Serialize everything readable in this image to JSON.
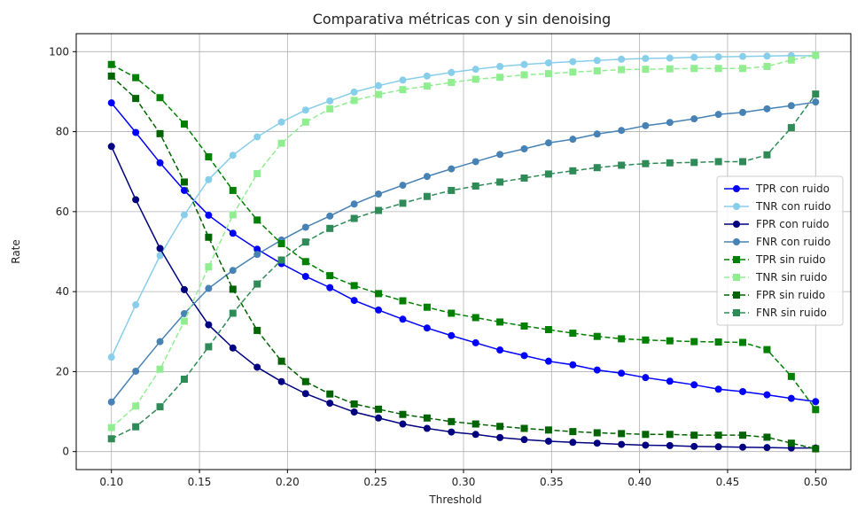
{
  "chart_data": {
    "type": "line",
    "title": "Comparativa métricas con y sin denoising",
    "xlabel": "Threshold",
    "ylabel": "Rate",
    "xlim": [
      0.08,
      0.52
    ],
    "ylim": [
      -4.5,
      104.5
    ],
    "xticks": [
      0.1,
      0.15,
      0.2,
      0.25,
      0.3,
      0.35,
      0.4,
      0.45,
      0.5
    ],
    "xtick_labels": [
      "0.10",
      "0.15",
      "0.20",
      "0.25",
      "0.30",
      "0.35",
      "0.40",
      "0.45",
      "0.50"
    ],
    "yticks": [
      0,
      20,
      40,
      60,
      80,
      100
    ],
    "ytick_labels": [
      "0",
      "20",
      "40",
      "60",
      "80",
      "100"
    ],
    "grid": true,
    "legend_position": "right",
    "x": [
      0.1,
      0.1138,
      0.1276,
      0.1414,
      0.1552,
      0.169,
      0.1828,
      0.1966,
      0.2103,
      0.2241,
      0.2379,
      0.2517,
      0.2655,
      0.2793,
      0.2931,
      0.3069,
      0.3207,
      0.3345,
      0.3483,
      0.3621,
      0.3759,
      0.3897,
      0.4034,
      0.4172,
      0.431,
      0.4448,
      0.4586,
      0.4724,
      0.4862,
      0.5
    ],
    "series": [
      {
        "name": "TPR con ruido",
        "color": "#0000ff",
        "style": "solid",
        "marker": "circle",
        "values": [
          87.2,
          79.8,
          72.2,
          65.3,
          59.1,
          54.6,
          50.6,
          47.0,
          43.8,
          41.0,
          37.8,
          35.4,
          33.1,
          30.9,
          29.0,
          27.2,
          25.4,
          24.0,
          22.6,
          21.7,
          20.4,
          19.6,
          18.5,
          17.6,
          16.7,
          15.6,
          15.0,
          14.2,
          13.3,
          12.5
        ]
      },
      {
        "name": "TNR con ruido",
        "color": "#87ceeb",
        "style": "solid",
        "marker": "circle",
        "values": [
          23.6,
          36.7,
          49.0,
          59.2,
          68.0,
          74.1,
          78.7,
          82.4,
          85.4,
          87.7,
          89.9,
          91.5,
          92.9,
          93.9,
          94.8,
          95.6,
          96.3,
          96.8,
          97.2,
          97.5,
          97.8,
          98.1,
          98.3,
          98.4,
          98.6,
          98.7,
          98.8,
          98.9,
          99.0,
          99.0
        ]
      },
      {
        "name": "FPR con ruido",
        "color": "#000080",
        "style": "solid",
        "marker": "circle",
        "values": [
          76.3,
          63.0,
          50.8,
          40.5,
          31.7,
          25.9,
          21.1,
          17.5,
          14.5,
          12.1,
          9.9,
          8.4,
          6.9,
          5.8,
          4.9,
          4.3,
          3.5,
          3.0,
          2.6,
          2.3,
          2.1,
          1.8,
          1.6,
          1.5,
          1.3,
          1.2,
          1.1,
          1.0,
          0.9,
          0.9
        ]
      },
      {
        "name": "FNR con ruido",
        "color": "#4682b4",
        "style": "solid",
        "marker": "circle",
        "values": [
          12.4,
          20.1,
          27.5,
          34.5,
          40.8,
          45.3,
          49.3,
          52.9,
          56.1,
          58.9,
          61.9,
          64.4,
          66.6,
          68.8,
          70.7,
          72.5,
          74.3,
          75.7,
          77.2,
          78.1,
          79.4,
          80.3,
          81.5,
          82.3,
          83.2,
          84.3,
          84.8,
          85.7,
          86.5,
          87.4
        ]
      },
      {
        "name": "TPR sin ruido",
        "color": "#008000",
        "style": "dashed",
        "marker": "square",
        "values": [
          96.8,
          93.5,
          88.5,
          81.9,
          73.7,
          65.3,
          57.9,
          52.0,
          47.5,
          44.0,
          41.5,
          39.5,
          37.7,
          36.1,
          34.6,
          33.5,
          32.4,
          31.4,
          30.5,
          29.6,
          28.8,
          28.2,
          27.9,
          27.7,
          27.5,
          27.4,
          27.3,
          25.5,
          18.8,
          10.5
        ]
      },
      {
        "name": "TNR sin ruido",
        "color": "#90ee90",
        "style": "dashed",
        "marker": "square",
        "values": [
          6.0,
          11.4,
          20.6,
          32.6,
          46.2,
          59.2,
          69.5,
          77.1,
          82.4,
          85.7,
          87.8,
          89.3,
          90.5,
          91.4,
          92.3,
          93.1,
          93.6,
          94.2,
          94.5,
          94.9,
          95.2,
          95.5,
          95.6,
          95.7,
          95.8,
          95.8,
          95.8,
          96.3,
          97.9,
          99.1
        ]
      },
      {
        "name": "FPR sin ruido",
        "color": "#006400",
        "style": "dashed",
        "marker": "square",
        "values": [
          93.9,
          88.3,
          79.5,
          67.4,
          53.6,
          40.6,
          30.3,
          22.6,
          17.5,
          14.4,
          11.9,
          10.6,
          9.3,
          8.4,
          7.5,
          6.9,
          6.3,
          5.8,
          5.4,
          5.0,
          4.7,
          4.5,
          4.3,
          4.3,
          4.1,
          4.1,
          4.1,
          3.6,
          2.1,
          0.7
        ]
      },
      {
        "name": "FNR sin ruido",
        "color": "#2e8b57",
        "style": "dashed",
        "marker": "square",
        "values": [
          3.2,
          6.2,
          11.2,
          18.1,
          26.2,
          34.6,
          41.9,
          47.9,
          52.4,
          55.8,
          58.3,
          60.3,
          62.1,
          63.8,
          65.3,
          66.4,
          67.4,
          68.4,
          69.4,
          70.2,
          71.0,
          71.6,
          72.0,
          72.2,
          72.3,
          72.5,
          72.5,
          74.2,
          81.0,
          89.4
        ]
      }
    ]
  }
}
